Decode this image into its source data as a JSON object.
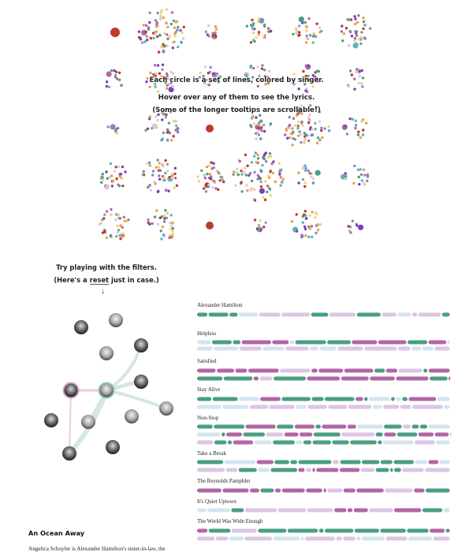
{
  "intro": {
    "line1": "Each circle is a set of lines, colored by singer.",
    "line2": "Hover over any of them to see the lyrics.",
    "line3": "(Some of the longer tooltips are scrollable!)"
  },
  "filters": {
    "line1": "Try playing with the filters.",
    "line2_prefix": "(Here's a ",
    "reset_label": "reset",
    "line2_suffix": " just in case.)",
    "arrow": "↓"
  },
  "colors": {
    "green": "#4a9e83",
    "purple": "#b266a6",
    "light_purple": "#dcc6e6",
    "light_blue": "#d4e4ef",
    "blue_gray": "#7b8fbd",
    "red": "#c0392b",
    "orange": "#e8a04a",
    "yellow": "#f0d37a",
    "teal": "#5bb7b4",
    "violet": "#7b3fb6"
  },
  "songs": [
    {
      "title": "Alexander Hamilton"
    },
    {
      "title": "Helpless"
    },
    {
      "title": "Satisfied"
    },
    {
      "title": "Stay Alive"
    },
    {
      "title": "Non-Stop"
    },
    {
      "title": "Take a Break"
    },
    {
      "title": "The Reynolds Pamphlet"
    },
    {
      "title": "It's Quiet Uptown"
    },
    {
      "title": "The World Was Wide Enough"
    }
  ],
  "section": {
    "title": "An Ocean Away",
    "body": "Angelica Schuyler is Alexander Hamilton's sister-in-law, the"
  }
}
